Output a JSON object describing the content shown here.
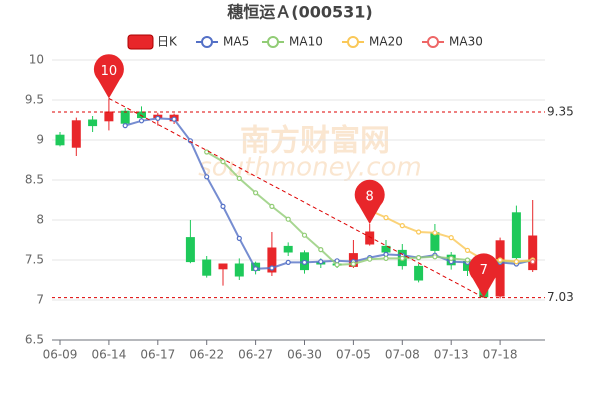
{
  "chart_data": {
    "type": "candlestick",
    "title": "穗恒运Ａ(000531)",
    "watermark": [
      "南方财富网",
      "southmoney.com"
    ],
    "categories": [
      "06-09",
      null,
      null,
      "06-14",
      null,
      null,
      "06-17",
      null,
      null,
      "06-22",
      null,
      null,
      "06-27",
      null,
      null,
      "06-30",
      null,
      null,
      "07-05",
      null,
      null,
      "07-08",
      null,
      null,
      "07-13",
      null,
      null,
      "07-18",
      null,
      null
    ],
    "candles": {
      "name": "日K",
      "up_color": "#e8262a",
      "down_color": "#1ec95a",
      "open": [
        9.06,
        8.91,
        9.25,
        9.24,
        9.36,
        9.35,
        9.28,
        9.24,
        7.78,
        7.5,
        7.39,
        7.45,
        7.46,
        7.35,
        7.67,
        7.59,
        7.47,
        7.45,
        7.42,
        7.7,
        7.67,
        7.62,
        7.42,
        7.84,
        7.56,
        7.48,
        7.24,
        7.05,
        8.09,
        7.38
      ],
      "high": [
        9.1,
        9.28,
        9.3,
        9.52,
        9.4,
        9.42,
        9.34,
        9.33,
        8.0,
        7.55,
        7.45,
        7.52,
        7.48,
        7.85,
        7.72,
        7.62,
        7.52,
        7.5,
        7.75,
        7.95,
        7.75,
        7.7,
        7.45,
        7.95,
        7.6,
        7.52,
        7.28,
        7.78,
        8.18,
        8.25
      ],
      "low": [
        8.92,
        8.8,
        9.1,
        9.12,
        9.2,
        9.22,
        9.18,
        9.2,
        7.46,
        7.28,
        7.18,
        7.25,
        7.32,
        7.3,
        7.55,
        7.33,
        7.4,
        7.4,
        7.4,
        7.68,
        7.55,
        7.38,
        7.22,
        7.58,
        7.38,
        7.3,
        7.03,
        7.02,
        7.45,
        7.35
      ],
      "close": [
        8.94,
        9.24,
        9.18,
        9.35,
        9.21,
        9.28,
        9.31,
        9.31,
        7.48,
        7.31,
        7.45,
        7.3,
        7.37,
        7.65,
        7.6,
        7.38,
        7.45,
        7.44,
        7.58,
        7.85,
        7.6,
        7.43,
        7.25,
        7.62,
        7.44,
        7.37,
        7.04,
        7.74,
        7.53,
        7.8
      ]
    },
    "series": [
      {
        "name": "MA5",
        "color": "#5470c6",
        "values": [
          null,
          null,
          null,
          null,
          9.18,
          9.24,
          9.27,
          9.26,
          8.99,
          8.54,
          8.17,
          7.77,
          7.39,
          7.4,
          7.47,
          7.47,
          7.48,
          7.49,
          7.48,
          7.53,
          7.57,
          7.56,
          7.53,
          7.56,
          7.48,
          7.47,
          7.46,
          7.47,
          7.45,
          7.5
        ]
      },
      {
        "name": "MA10",
        "color": "#91cc75",
        "values": [
          null,
          null,
          null,
          null,
          null,
          null,
          null,
          null,
          null,
          8.85,
          8.73,
          8.52,
          8.34,
          8.17,
          8.01,
          7.81,
          7.63,
          7.44,
          7.45,
          7.51,
          7.52,
          7.52,
          7.53,
          7.54,
          7.52,
          7.5,
          7.48,
          7.49,
          7.48,
          7.49
        ]
      },
      {
        "name": "MA20",
        "color": "#fac858",
        "values": [
          null,
          null,
          null,
          null,
          null,
          null,
          null,
          null,
          null,
          null,
          null,
          null,
          null,
          null,
          null,
          null,
          null,
          null,
          null,
          8.12,
          8.03,
          7.93,
          7.85,
          7.84,
          7.78,
          7.62,
          7.5,
          7.5,
          7.48,
          7.5
        ]
      },
      {
        "name": "MA30",
        "color": "#ee6666",
        "values": [
          null,
          null,
          null,
          null,
          null,
          null,
          null,
          null,
          null,
          null,
          null,
          null,
          null,
          null,
          null,
          null,
          null,
          null,
          null,
          null,
          null,
          null,
          null,
          null,
          null,
          null,
          null,
          null,
          null,
          7.48
        ]
      }
    ],
    "annotations": [
      {
        "text": "10",
        "value": 9.52
      },
      {
        "text": "8",
        "value": 7.95
      },
      {
        "text": "7",
        "value": 7.03
      }
    ],
    "ref_lines": [
      9.35,
      7.03
    ],
    "ylim": [
      6.5,
      10
    ],
    "yticks": [
      6.5,
      7,
      7.5,
      8,
      8.5,
      9,
      9.5,
      10
    ],
    "grid": true
  }
}
